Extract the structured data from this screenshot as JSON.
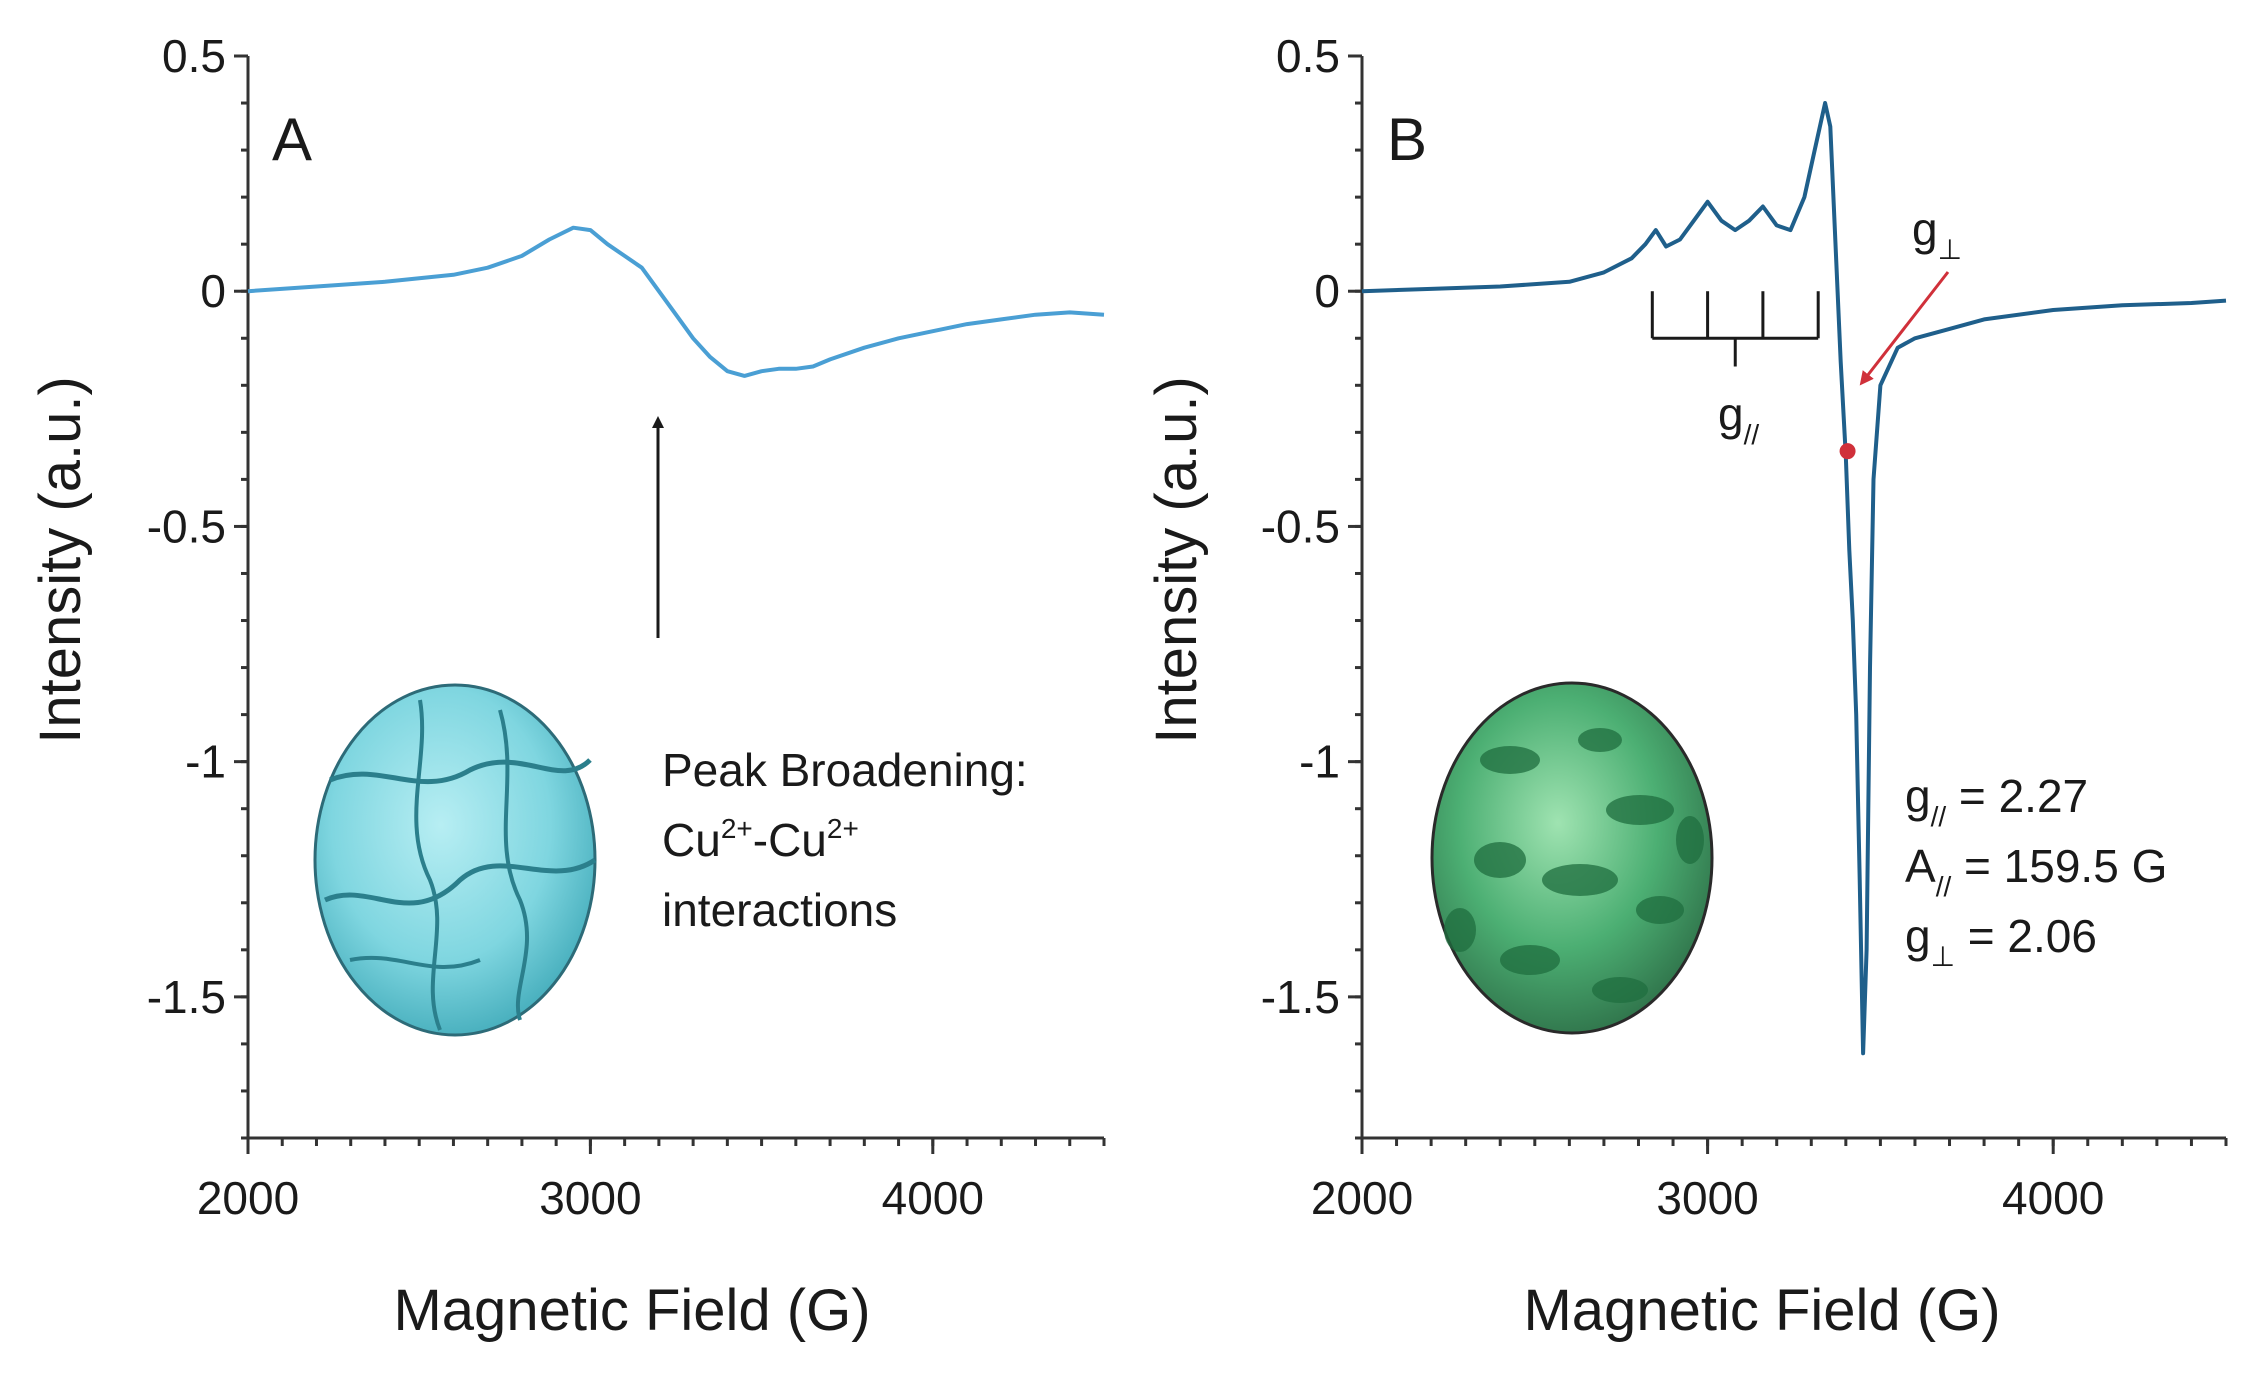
{
  "chart_data": [
    {
      "type": "line",
      "panel_label": "A",
      "xlabel": "Magnetic Field (G)",
      "ylabel": "Intensity (a.u.)",
      "xlim": [
        2000,
        4500
      ],
      "ylim": [
        -1.8,
        0.5
      ],
      "x_ticks": [
        2000,
        3000,
        4000
      ],
      "x_tick_labels": [
        "2000",
        "3000",
        "4000"
      ],
      "y_ticks": [
        0.5,
        0,
        -0.5,
        -1,
        -1.5
      ],
      "y_tick_labels": [
        "0.5",
        "0",
        "-0.5",
        "-1",
        "-1.5"
      ],
      "grid": false,
      "series": [
        {
          "color": "#4a9fd4",
          "x": [
            2000,
            2200,
            2400,
            2600,
            2700,
            2800,
            2880,
            2950,
            3000,
            3050,
            3100,
            3150,
            3200,
            3250,
            3300,
            3350,
            3400,
            3450,
            3500,
            3550,
            3600,
            3650,
            3700,
            3800,
            3900,
            4000,
            4100,
            4200,
            4300,
            4400,
            4500
          ],
          "y": [
            0.0,
            0.01,
            0.02,
            0.035,
            0.05,
            0.075,
            0.11,
            0.135,
            0.13,
            0.1,
            0.075,
            0.05,
            0.0,
            -0.05,
            -0.1,
            -0.14,
            -0.17,
            -0.18,
            -0.17,
            -0.165,
            -0.165,
            -0.16,
            -0.145,
            -0.12,
            -0.1,
            -0.085,
            -0.07,
            -0.06,
            -0.05,
            -0.045,
            -0.05
          ]
        }
      ],
      "annotation": {
        "text_line1": "Peak Broadening:",
        "ion1": "Cu",
        "charge1": "2+",
        "dash": "-",
        "ion2": "Cu",
        "charge2": "2+",
        "text_line3": "interactions",
        "arrow_x": 3200,
        "arrow_from_y": -0.73,
        "arrow_to_y": -0.25
      },
      "inset": {
        "kind": "sample-photo",
        "color": "#7fd6e0"
      }
    },
    {
      "type": "line",
      "panel_label": "B",
      "xlabel": "Magnetic Field (G)",
      "ylabel": "Intensity (a.u.)",
      "xlim": [
        2000,
        4500
      ],
      "ylim": [
        -1.8,
        0.5
      ],
      "x_ticks": [
        2000,
        3000,
        4000
      ],
      "x_tick_labels": [
        "2000",
        "3000",
        "4000"
      ],
      "y_ticks": [
        0.5,
        0,
        -0.5,
        -1,
        -1.5
      ],
      "y_tick_labels": [
        "0.5",
        "0",
        "-0.5",
        "-1",
        "-1.5"
      ],
      "grid": false,
      "series": [
        {
          "color": "#1f5f8b",
          "x": [
            2000,
            2200,
            2400,
            2600,
            2700,
            2780,
            2820,
            2850,
            2880,
            2920,
            2960,
            3000,
            3040,
            3080,
            3120,
            3160,
            3200,
            3240,
            3280,
            3310,
            3340,
            3355,
            3370,
            3385,
            3400,
            3410,
            3420,
            3430,
            3440,
            3450,
            3460,
            3470,
            3480,
            3500,
            3550,
            3600,
            3700,
            3800,
            4000,
            4200,
            4400,
            4500
          ],
          "y": [
            0.0,
            0.005,
            0.01,
            0.02,
            0.04,
            0.07,
            0.1,
            0.13,
            0.095,
            0.11,
            0.15,
            0.19,
            0.15,
            0.13,
            0.15,
            0.18,
            0.14,
            0.13,
            0.2,
            0.3,
            0.4,
            0.35,
            0.1,
            -0.15,
            -0.35,
            -0.55,
            -0.7,
            -0.9,
            -1.25,
            -1.62,
            -1.4,
            -0.8,
            -0.4,
            -0.2,
            -0.12,
            -0.1,
            -0.08,
            -0.06,
            -0.04,
            -0.03,
            -0.025,
            -0.02
          ]
        }
      ],
      "hyperfine_comb": {
        "x_positions": [
          2840,
          3000,
          3160,
          3320
        ],
        "label": "g",
        "label_sub": "//"
      },
      "g_perp_annotation": {
        "label": "g",
        "label_sub": "⊥",
        "marker_x": 3405,
        "marker_y": -0.34,
        "marker_color": "#d0303a"
      },
      "parameters": [
        {
          "name": "g",
          "sub": "//",
          "value": " = 2.27"
        },
        {
          "name": "A",
          "sub": "//",
          "value": " = 159.5 G"
        },
        {
          "name": "g",
          "sub": "⊥",
          "value": " = 2.06"
        }
      ],
      "inset": {
        "kind": "sample-photo",
        "color": "#4caf73"
      }
    }
  ]
}
